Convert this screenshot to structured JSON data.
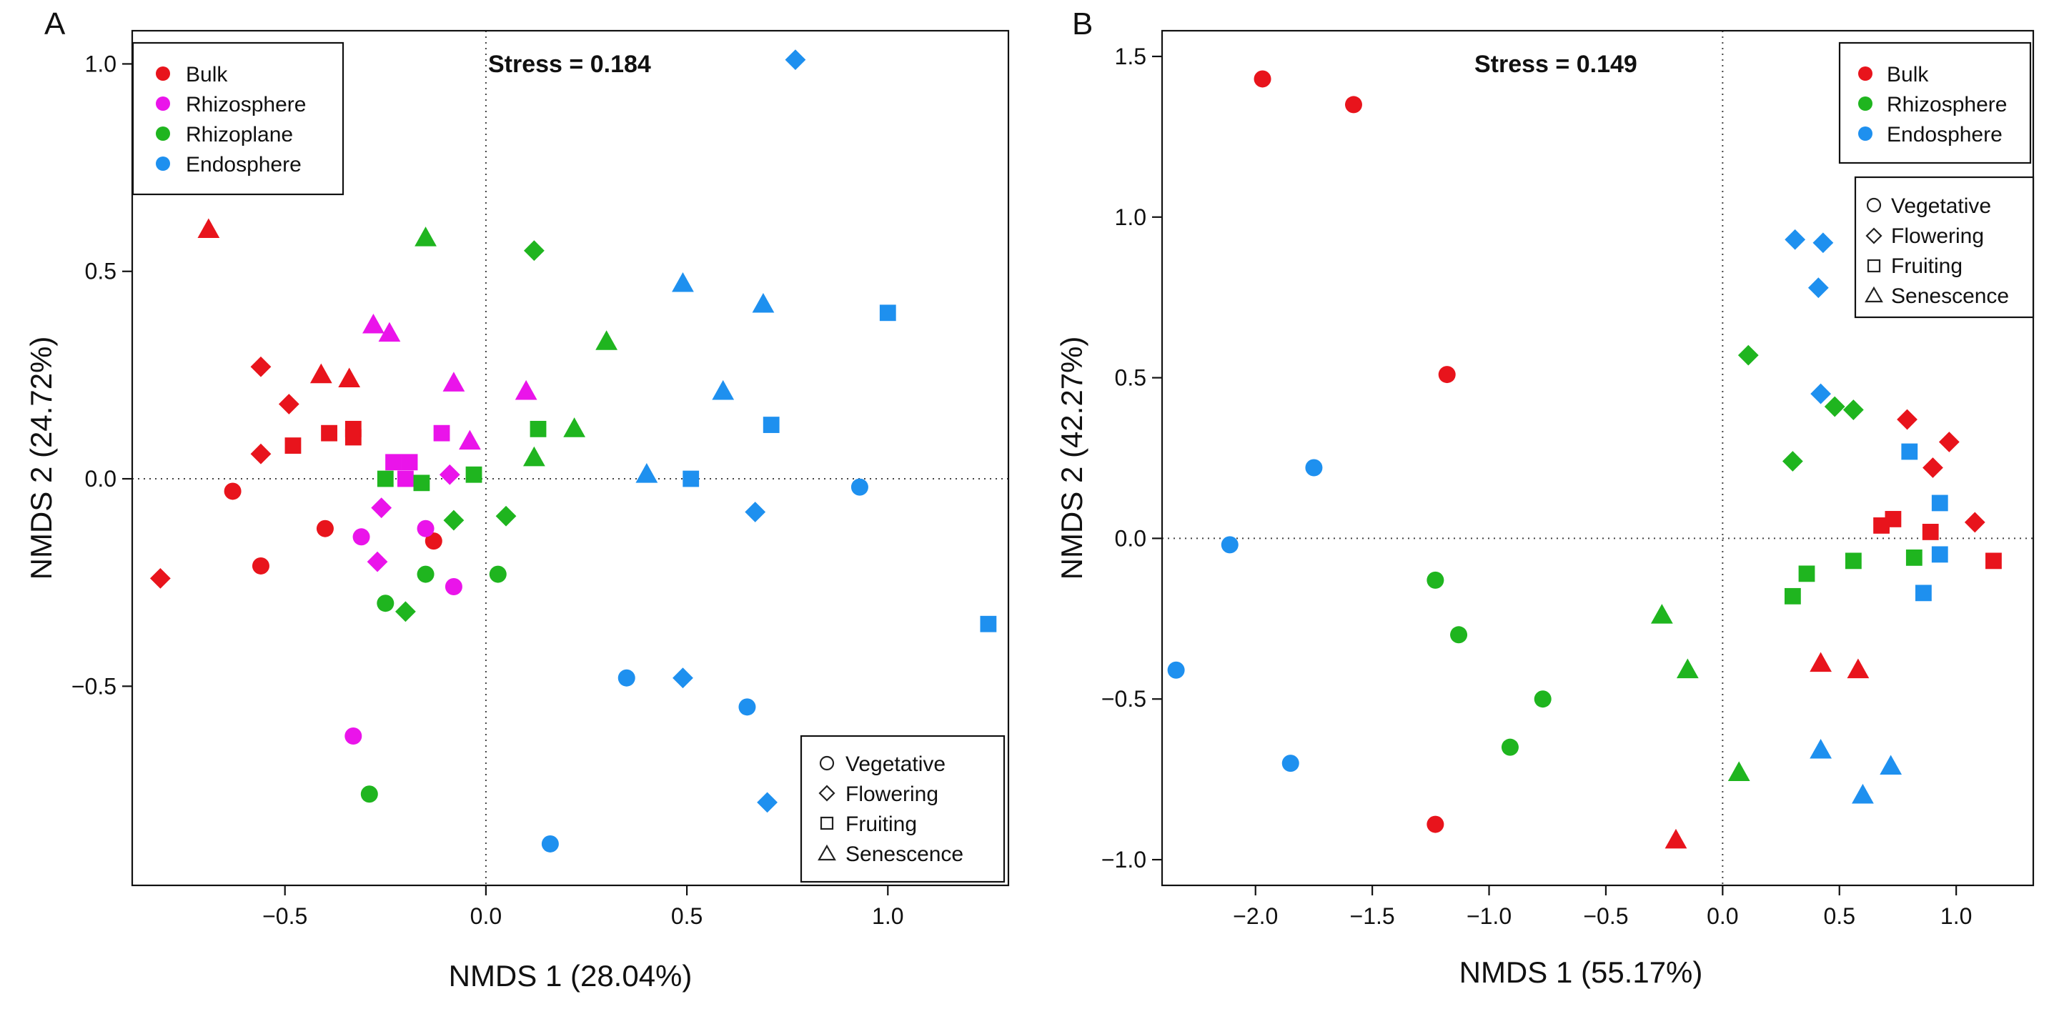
{
  "chart_data": [
    {
      "panel_label": "A",
      "type": "scatter",
      "stress_label": "Stress = 0.184",
      "xlabel": "NMDS 1 (28.04%)",
      "ylabel": "NMDS 2 (24.72%)",
      "xlim": [
        -0.88,
        1.3
      ],
      "ylim": [
        -0.98,
        1.08
      ],
      "xticks": [
        -0.5,
        0.0,
        0.5,
        1.0
      ],
      "xtick_labels": [
        "−0.5",
        "0.0",
        "0.5",
        "1.0"
      ],
      "yticks": [
        -0.5,
        0.0,
        0.5,
        1.0
      ],
      "ytick_labels": [
        "−0.5",
        "0.0",
        "0.5",
        "1.0"
      ],
      "reference_lines": {
        "x": 0,
        "y": 0
      },
      "color_legend": {
        "position": "top-left",
        "items": [
          {
            "label": "Bulk",
            "color": "#e8141c"
          },
          {
            "label": "Rhizosphere",
            "color": "#ea14ea"
          },
          {
            "label": "Rhizoplane",
            "color": "#1fb51f"
          },
          {
            "label": "Endosphere",
            "color": "#1e90ef"
          }
        ]
      },
      "shape_legend": {
        "position": "bottom-right",
        "items": [
          {
            "label": "Vegetative",
            "shape": "circle"
          },
          {
            "label": "Flowering",
            "shape": "diamond"
          },
          {
            "label": "Fruiting",
            "shape": "square"
          },
          {
            "label": "Senescence",
            "shape": "triangle"
          }
        ]
      },
      "series": [
        {
          "name": "Bulk",
          "color": "#e8141c",
          "points": [
            {
              "x": -0.63,
              "y": -0.03,
              "stage": "Vegetative"
            },
            {
              "x": -0.4,
              "y": -0.12,
              "stage": "Vegetative"
            },
            {
              "x": -0.56,
              "y": -0.21,
              "stage": "Vegetative"
            },
            {
              "x": -0.13,
              "y": -0.15,
              "stage": "Vegetative"
            },
            {
              "x": -0.81,
              "y": -0.24,
              "stage": "Flowering"
            },
            {
              "x": -0.56,
              "y": 0.27,
              "stage": "Flowering"
            },
            {
              "x": -0.49,
              "y": 0.18,
              "stage": "Flowering"
            },
            {
              "x": -0.56,
              "y": 0.06,
              "stage": "Flowering"
            },
            {
              "x": -0.48,
              "y": 0.08,
              "stage": "Fruiting"
            },
            {
              "x": -0.39,
              "y": 0.11,
              "stage": "Fruiting"
            },
            {
              "x": -0.33,
              "y": 0.12,
              "stage": "Fruiting"
            },
            {
              "x": -0.33,
              "y": 0.1,
              "stage": "Fruiting"
            },
            {
              "x": -0.69,
              "y": 0.6,
              "stage": "Senescence"
            },
            {
              "x": -0.41,
              "y": 0.25,
              "stage": "Senescence"
            },
            {
              "x": -0.34,
              "y": 0.24,
              "stage": "Senescence"
            }
          ]
        },
        {
          "name": "Rhizosphere",
          "color": "#ea14ea",
          "points": [
            {
              "x": -0.31,
              "y": -0.14,
              "stage": "Vegetative"
            },
            {
              "x": -0.15,
              "y": -0.12,
              "stage": "Vegetative"
            },
            {
              "x": -0.08,
              "y": -0.26,
              "stage": "Vegetative"
            },
            {
              "x": -0.33,
              "y": -0.62,
              "stage": "Vegetative"
            },
            {
              "x": -0.26,
              "y": -0.07,
              "stage": "Flowering"
            },
            {
              "x": -0.27,
              "y": -0.2,
              "stage": "Flowering"
            },
            {
              "x": -0.09,
              "y": 0.01,
              "stage": "Flowering"
            },
            {
              "x": -0.23,
              "y": 0.04,
              "stage": "Fruiting"
            },
            {
              "x": -0.2,
              "y": 0.0,
              "stage": "Fruiting"
            },
            {
              "x": -0.19,
              "y": 0.04,
              "stage": "Fruiting"
            },
            {
              "x": -0.11,
              "y": 0.11,
              "stage": "Fruiting"
            },
            {
              "x": -0.28,
              "y": 0.37,
              "stage": "Senescence"
            },
            {
              "x": -0.24,
              "y": 0.35,
              "stage": "Senescence"
            },
            {
              "x": -0.08,
              "y": 0.23,
              "stage": "Senescence"
            },
            {
              "x": -0.04,
              "y": 0.09,
              "stage": "Senescence"
            },
            {
              "x": 0.1,
              "y": 0.21,
              "stage": "Senescence"
            }
          ]
        },
        {
          "name": "Rhizoplane",
          "color": "#1fb51f",
          "points": [
            {
              "x": -0.25,
              "y": -0.3,
              "stage": "Vegetative"
            },
            {
              "x": -0.15,
              "y": -0.23,
              "stage": "Vegetative"
            },
            {
              "x": 0.03,
              "y": -0.23,
              "stage": "Vegetative"
            },
            {
              "x": -0.29,
              "y": -0.76,
              "stage": "Vegetative"
            },
            {
              "x": -0.2,
              "y": -0.32,
              "stage": "Flowering"
            },
            {
              "x": -0.08,
              "y": -0.1,
              "stage": "Flowering"
            },
            {
              "x": 0.05,
              "y": -0.09,
              "stage": "Flowering"
            },
            {
              "x": 0.12,
              "y": 0.55,
              "stage": "Flowering"
            },
            {
              "x": -0.25,
              "y": 0.0,
              "stage": "Fruiting"
            },
            {
              "x": -0.16,
              "y": -0.01,
              "stage": "Fruiting"
            },
            {
              "x": -0.03,
              "y": 0.01,
              "stage": "Fruiting"
            },
            {
              "x": 0.13,
              "y": 0.12,
              "stage": "Fruiting"
            },
            {
              "x": -0.15,
              "y": 0.58,
              "stage": "Senescence"
            },
            {
              "x": 0.3,
              "y": 0.33,
              "stage": "Senescence"
            },
            {
              "x": 0.22,
              "y": 0.12,
              "stage": "Senescence"
            },
            {
              "x": 0.12,
              "y": 0.05,
              "stage": "Senescence"
            }
          ]
        },
        {
          "name": "Endosphere",
          "color": "#1e90ef",
          "points": [
            {
              "x": 0.93,
              "y": -0.02,
              "stage": "Vegetative"
            },
            {
              "x": 0.35,
              "y": -0.48,
              "stage": "Vegetative"
            },
            {
              "x": 0.65,
              "y": -0.55,
              "stage": "Vegetative"
            },
            {
              "x": 0.16,
              "y": -0.88,
              "stage": "Vegetative"
            },
            {
              "x": 0.77,
              "y": 1.01,
              "stage": "Flowering"
            },
            {
              "x": 0.67,
              "y": -0.08,
              "stage": "Flowering"
            },
            {
              "x": 0.49,
              "y": -0.48,
              "stage": "Flowering"
            },
            {
              "x": 0.7,
              "y": -0.78,
              "stage": "Flowering"
            },
            {
              "x": 1.0,
              "y": 0.4,
              "stage": "Fruiting"
            },
            {
              "x": 0.71,
              "y": 0.13,
              "stage": "Fruiting"
            },
            {
              "x": 0.51,
              "y": 0.0,
              "stage": "Fruiting"
            },
            {
              "x": 1.25,
              "y": -0.35,
              "stage": "Fruiting"
            },
            {
              "x": 0.49,
              "y": 0.47,
              "stage": "Senescence"
            },
            {
              "x": 0.69,
              "y": 0.42,
              "stage": "Senescence"
            },
            {
              "x": 0.59,
              "y": 0.21,
              "stage": "Senescence"
            },
            {
              "x": 0.4,
              "y": 0.01,
              "stage": "Senescence"
            }
          ]
        }
      ]
    },
    {
      "panel_label": "B",
      "type": "scatter",
      "stress_label": "Stress = 0.149",
      "xlabel": "NMDS 1 (55.17%)",
      "ylabel": "NMDS 2 (42.27%)",
      "xlim": [
        -2.4,
        1.33
      ],
      "ylim": [
        -1.08,
        1.58
      ],
      "xticks": [
        -2.0,
        -1.5,
        -1.0,
        -0.5,
        0.0,
        0.5,
        1.0
      ],
      "xtick_labels": [
        "−2.0",
        "−1.5",
        "−1.0",
        "−0.5",
        "0.0",
        "0.5",
        "1.0"
      ],
      "yticks": [
        -1.0,
        -0.5,
        0.0,
        0.5,
        1.0,
        1.5
      ],
      "ytick_labels": [
        "−1.0",
        "−0.5",
        "0.0",
        "0.5",
        "1.0",
        "1.5"
      ],
      "reference_lines": {
        "x": 0,
        "y": 0
      },
      "color_legend": {
        "position": "top-right",
        "items": [
          {
            "label": "Bulk",
            "color": "#e8141c"
          },
          {
            "label": "Rhizosphere",
            "color": "#1fb51f"
          },
          {
            "label": "Endosphere",
            "color": "#1e90ef"
          }
        ]
      },
      "shape_legend": {
        "position": "right",
        "items": [
          {
            "label": "Vegetative",
            "shape": "circle"
          },
          {
            "label": "Flowering",
            "shape": "diamond"
          },
          {
            "label": "Fruiting",
            "shape": "square"
          },
          {
            "label": "Senescence",
            "shape": "triangle"
          }
        ]
      },
      "series": [
        {
          "name": "Bulk",
          "color": "#e8141c",
          "points": [
            {
              "x": -1.97,
              "y": 1.43,
              "stage": "Vegetative"
            },
            {
              "x": -1.58,
              "y": 1.35,
              "stage": "Vegetative"
            },
            {
              "x": -1.18,
              "y": 0.51,
              "stage": "Vegetative"
            },
            {
              "x": -1.23,
              "y": -0.89,
              "stage": "Vegetative"
            },
            {
              "x": 0.79,
              "y": 0.37,
              "stage": "Flowering"
            },
            {
              "x": 0.97,
              "y": 0.3,
              "stage": "Flowering"
            },
            {
              "x": 0.9,
              "y": 0.22,
              "stage": "Flowering"
            },
            {
              "x": 1.08,
              "y": 0.05,
              "stage": "Flowering"
            },
            {
              "x": 0.73,
              "y": 0.06,
              "stage": "Fruiting"
            },
            {
              "x": 0.68,
              "y": 0.04,
              "stage": "Fruiting"
            },
            {
              "x": 0.89,
              "y": 0.02,
              "stage": "Fruiting"
            },
            {
              "x": 1.16,
              "y": -0.07,
              "stage": "Fruiting"
            },
            {
              "x": 0.42,
              "y": -0.39,
              "stage": "Senescence"
            },
            {
              "x": 0.58,
              "y": -0.41,
              "stage": "Senescence"
            },
            {
              "x": -0.2,
              "y": -0.94,
              "stage": "Senescence"
            }
          ]
        },
        {
          "name": "Rhizosphere",
          "color": "#1fb51f",
          "points": [
            {
              "x": -1.23,
              "y": -0.13,
              "stage": "Vegetative"
            },
            {
              "x": -1.13,
              "y": -0.3,
              "stage": "Vegetative"
            },
            {
              "x": -0.77,
              "y": -0.5,
              "stage": "Vegetative"
            },
            {
              "x": -0.91,
              "y": -0.65,
              "stage": "Vegetative"
            },
            {
              "x": 0.11,
              "y": 0.57,
              "stage": "Flowering"
            },
            {
              "x": 0.48,
              "y": 0.41,
              "stage": "Flowering"
            },
            {
              "x": 0.56,
              "y": 0.4,
              "stage": "Flowering"
            },
            {
              "x": 0.3,
              "y": 0.24,
              "stage": "Flowering"
            },
            {
              "x": 0.36,
              "y": -0.11,
              "stage": "Fruiting"
            },
            {
              "x": 0.3,
              "y": -0.18,
              "stage": "Fruiting"
            },
            {
              "x": 0.56,
              "y": -0.07,
              "stage": "Fruiting"
            },
            {
              "x": 0.82,
              "y": -0.06,
              "stage": "Fruiting"
            },
            {
              "x": -0.26,
              "y": -0.24,
              "stage": "Senescence"
            },
            {
              "x": -0.15,
              "y": -0.41,
              "stage": "Senescence"
            },
            {
              "x": 0.07,
              "y": -0.73,
              "stage": "Senescence"
            }
          ]
        },
        {
          "name": "Endosphere",
          "color": "#1e90ef",
          "points": [
            {
              "x": -1.75,
              "y": 0.22,
              "stage": "Vegetative"
            },
            {
              "x": -2.11,
              "y": -0.02,
              "stage": "Vegetative"
            },
            {
              "x": -2.34,
              "y": -0.41,
              "stage": "Vegetative"
            },
            {
              "x": -1.85,
              "y": -0.7,
              "stage": "Vegetative"
            },
            {
              "x": 0.31,
              "y": 0.93,
              "stage": "Flowering"
            },
            {
              "x": 0.43,
              "y": 0.92,
              "stage": "Flowering"
            },
            {
              "x": 0.41,
              "y": 0.78,
              "stage": "Flowering"
            },
            {
              "x": 0.42,
              "y": 0.45,
              "stage": "Flowering"
            },
            {
              "x": 0.8,
              "y": 0.27,
              "stage": "Fruiting"
            },
            {
              "x": 0.93,
              "y": 0.11,
              "stage": "Fruiting"
            },
            {
              "x": 0.93,
              "y": -0.05,
              "stage": "Fruiting"
            },
            {
              "x": 0.86,
              "y": -0.17,
              "stage": "Fruiting"
            },
            {
              "x": 0.42,
              "y": -0.66,
              "stage": "Senescence"
            },
            {
              "x": 0.6,
              "y": -0.8,
              "stage": "Senescence"
            },
            {
              "x": 0.72,
              "y": -0.71,
              "stage": "Senescence"
            }
          ]
        }
      ]
    }
  ]
}
